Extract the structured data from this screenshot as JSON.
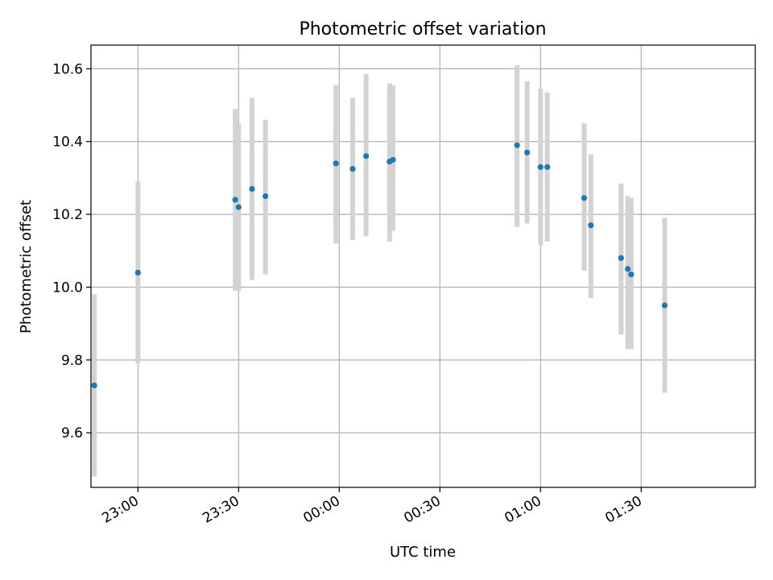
{
  "chart_data": {
    "type": "scatter",
    "title": "Photometric offset variation",
    "xlabel": "UTC time",
    "ylabel": "Photometric offset",
    "x_ticks": [
      "23:00",
      "23:30",
      "00:00",
      "00:30",
      "01:00",
      "01:30"
    ],
    "y_ticks": [
      "9.6",
      "9.8",
      "10.0",
      "10.2",
      "10.4",
      "10.6"
    ],
    "xlim": [
      "22:46",
      "02:04"
    ],
    "ylim": [
      9.45,
      10.665
    ],
    "grid": true,
    "legend": "none",
    "marker_color": "#1f77b4",
    "errorbar_color": "#d3d3d3",
    "series": [
      {
        "x": [
          "22:47",
          "23:00",
          "23:29",
          "23:30",
          "23:34",
          "23:38",
          "23:59",
          "00:04",
          "00:08",
          "00:15",
          "00:16",
          "00:53",
          "00:56",
          "01:00",
          "01:02",
          "01:13",
          "01:15",
          "01:24",
          "01:26",
          "01:27",
          "01:37"
        ],
        "y": [
          9.73,
          10.04,
          10.24,
          10.22,
          10.27,
          10.25,
          10.34,
          10.325,
          10.36,
          10.345,
          10.35,
          10.39,
          10.37,
          10.33,
          10.33,
          10.245,
          10.17,
          10.08,
          10.05,
          10.035,
          9.95
        ],
        "err_low": [
          9.48,
          9.79,
          9.99,
          9.99,
          10.02,
          10.035,
          10.12,
          10.13,
          10.14,
          10.125,
          10.155,
          10.165,
          10.175,
          10.115,
          10.125,
          10.045,
          9.97,
          9.87,
          9.83,
          9.83,
          9.71
        ],
        "err_high": [
          9.98,
          10.29,
          10.49,
          10.45,
          10.52,
          10.46,
          10.555,
          10.52,
          10.585,
          10.56,
          10.555,
          10.61,
          10.565,
          10.545,
          10.535,
          10.45,
          10.365,
          10.285,
          10.25,
          10.245,
          10.19
        ]
      }
    ]
  }
}
